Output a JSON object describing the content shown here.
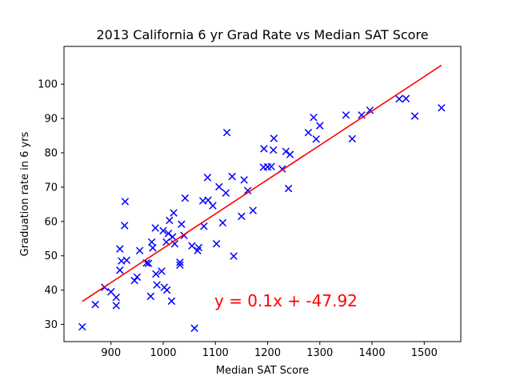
{
  "chart_data": {
    "type": "scatter",
    "title": "2013 California 6 yr Grad Rate vs Median SAT Score",
    "xlabel": "Median SAT Score",
    "ylabel": "Graduation rate in 6 yrs",
    "xlim": [
      810,
      1570
    ],
    "ylim": [
      25,
      111
    ],
    "xticks": [
      900,
      1000,
      1100,
      1200,
      1300,
      1400,
      1500
    ],
    "yticks": [
      30,
      40,
      50,
      60,
      70,
      80,
      90,
      100
    ],
    "grid": false,
    "marker": "x",
    "marker_color": "#0000ff",
    "regression_color": "#ff0000",
    "regression": {
      "slope": 0.1,
      "intercept": -47.92,
      "x_range": [
        845,
        1533
      ],
      "y_range": [
        36.7,
        105.5
      ]
    },
    "annotation": "y = 0.1x + -47.92",
    "points": [
      [
        845,
        29.3
      ],
      [
        870,
        35.8
      ],
      [
        888,
        40.8
      ],
      [
        900,
        39.5
      ],
      [
        910,
        35.5
      ],
      [
        910,
        37.9
      ],
      [
        917,
        45.8
      ],
      [
        917,
        52.0
      ],
      [
        920,
        48.5
      ],
      [
        926,
        58.8
      ],
      [
        927,
        65.8
      ],
      [
        930,
        48.7
      ],
      [
        945,
        42.8
      ],
      [
        950,
        43.8
      ],
      [
        955,
        51.5
      ],
      [
        968,
        47.9
      ],
      [
        972,
        47.8
      ],
      [
        976,
        38.2
      ],
      [
        978,
        54.0
      ],
      [
        980,
        52.3
      ],
      [
        985,
        58.1
      ],
      [
        986,
        44.7
      ],
      [
        988,
        41.5
      ],
      [
        997,
        45.5
      ],
      [
        1000,
        57.3
      ],
      [
        1002,
        40.8
      ],
      [
        1006,
        54.0
      ],
      [
        1007,
        40.0
      ],
      [
        1010,
        56.5
      ],
      [
        1012,
        60.3
      ],
      [
        1016,
        36.8
      ],
      [
        1018,
        55.5
      ],
      [
        1020,
        62.5
      ],
      [
        1022,
        53.5
      ],
      [
        1032,
        48.1
      ],
      [
        1032,
        47.3
      ],
      [
        1035,
        59.2
      ],
      [
        1040,
        55.9
      ],
      [
        1042,
        66.8
      ],
      [
        1055,
        52.9
      ],
      [
        1060,
        28.9
      ],
      [
        1066,
        51.5
      ],
      [
        1068,
        52.4
      ],
      [
        1076,
        66.0
      ],
      [
        1078,
        58.6
      ],
      [
        1085,
        72.8
      ],
      [
        1086,
        66.2
      ],
      [
        1095,
        64.6
      ],
      [
        1102,
        53.5
      ],
      [
        1107,
        70.1
      ],
      [
        1114,
        59.6
      ],
      [
        1120,
        68.3
      ],
      [
        1122,
        85.9
      ],
      [
        1132,
        73.1
      ],
      [
        1135,
        49.9
      ],
      [
        1150,
        61.5
      ],
      [
        1155,
        72.1
      ],
      [
        1162,
        69.0
      ],
      [
        1172,
        63.2
      ],
      [
        1192,
        75.8
      ],
      [
        1193,
        81.2
      ],
      [
        1200,
        75.9
      ],
      [
        1207,
        76.0
      ],
      [
        1211,
        80.8
      ],
      [
        1212,
        84.2
      ],
      [
        1228,
        75.3
      ],
      [
        1235,
        80.4
      ],
      [
        1240,
        69.6
      ],
      [
        1243,
        79.5
      ],
      [
        1278,
        85.9
      ],
      [
        1288,
        90.3
      ],
      [
        1293,
        84.0
      ],
      [
        1300,
        87.9
      ],
      [
        1350,
        91.0
      ],
      [
        1362,
        84.1
      ],
      [
        1380,
        91.0
      ],
      [
        1396,
        92.4
      ],
      [
        1452,
        95.7
      ],
      [
        1465,
        95.8
      ],
      [
        1482,
        90.7
      ],
      [
        1533,
        93.1
      ]
    ]
  }
}
